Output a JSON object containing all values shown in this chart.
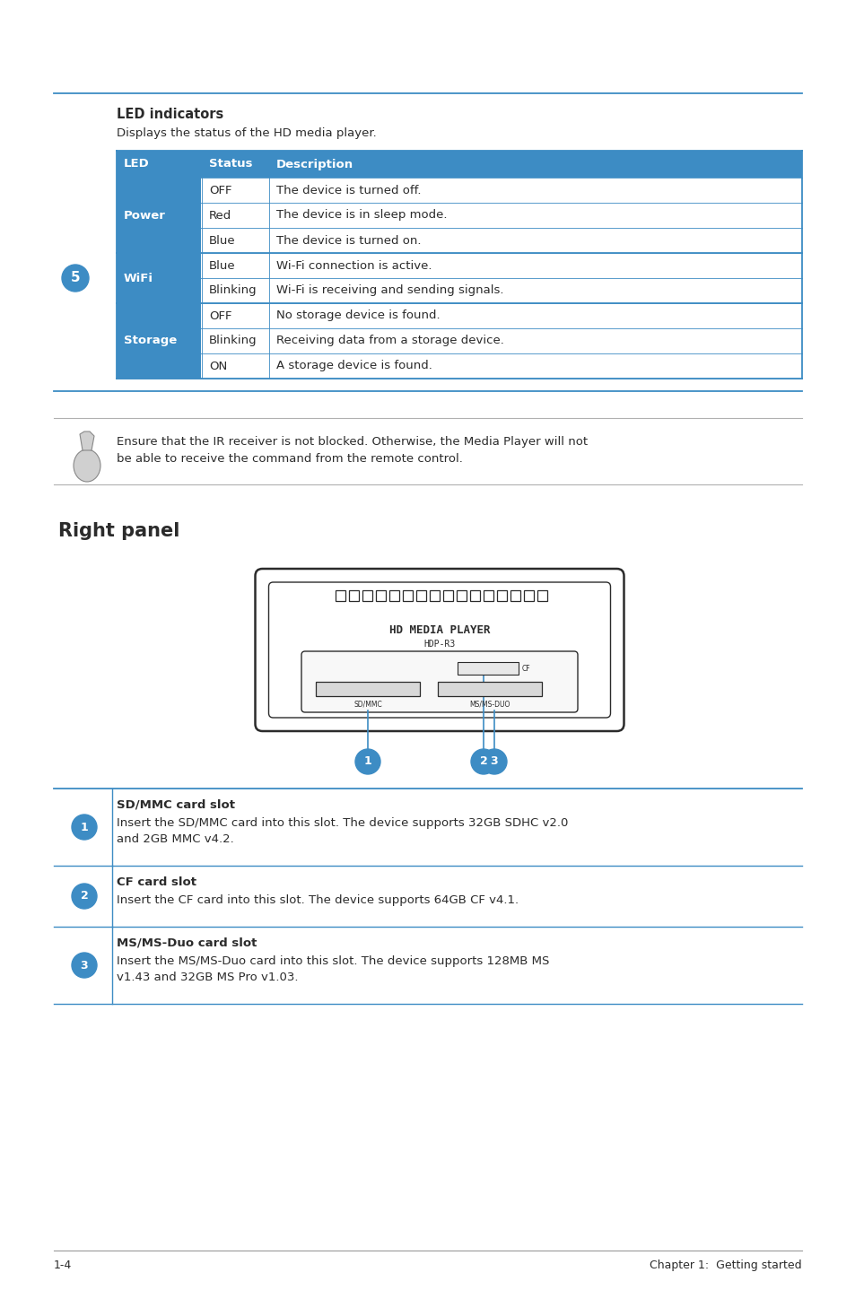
{
  "page_bg": "#ffffff",
  "blue": "#3d8cc4",
  "dark": "#2b2b2b",
  "white": "#ffffff",
  "gray_line": "#aaaaaa",
  "led_title": "LED indicators",
  "led_subtitle": "Displays the status of the HD media player.",
  "table_headers": [
    "LED",
    "Status",
    "Description"
  ],
  "table_rows": [
    [
      "Power",
      "OFF",
      "The device is turned off."
    ],
    [
      "",
      "Red",
      "The device is in sleep mode."
    ],
    [
      "",
      "Blue",
      "The device is turned on."
    ],
    [
      "WiFi",
      "Blue",
      "Wi-Fi connection is active."
    ],
    [
      "",
      "Blinking",
      "Wi-Fi is receiving and sending signals."
    ],
    [
      "Storage",
      "OFF",
      "No storage device is found."
    ],
    [
      "",
      "Blinking",
      "Receiving data from a storage device."
    ],
    [
      "",
      "ON",
      "A storage device is found."
    ]
  ],
  "note_text": "Ensure that the IR receiver is not blocked. Otherwise, the Media Player will not\nbe able to receive the command from the remote control.",
  "right_panel_title": "Right panel",
  "items": [
    {
      "num": "1",
      "title": "SD/MMC card slot",
      "desc": "Insert the SD/MMC card into this slot. The device supports 32GB SDHC v2.0\nand 2GB MMC v4.2."
    },
    {
      "num": "2",
      "title": "CF card slot",
      "desc": "Insert the CF card into this slot. The device supports 64GB CF v4.1."
    },
    {
      "num": "3",
      "title": "MS/MS-Duo card slot",
      "desc": "Insert the MS/MS-Duo card into this slot. The device supports 128MB MS\nv1.43 and 32GB MS Pro v1.03."
    }
  ],
  "footer_left": "1-4",
  "footer_right": "Chapter 1:  Getting started"
}
